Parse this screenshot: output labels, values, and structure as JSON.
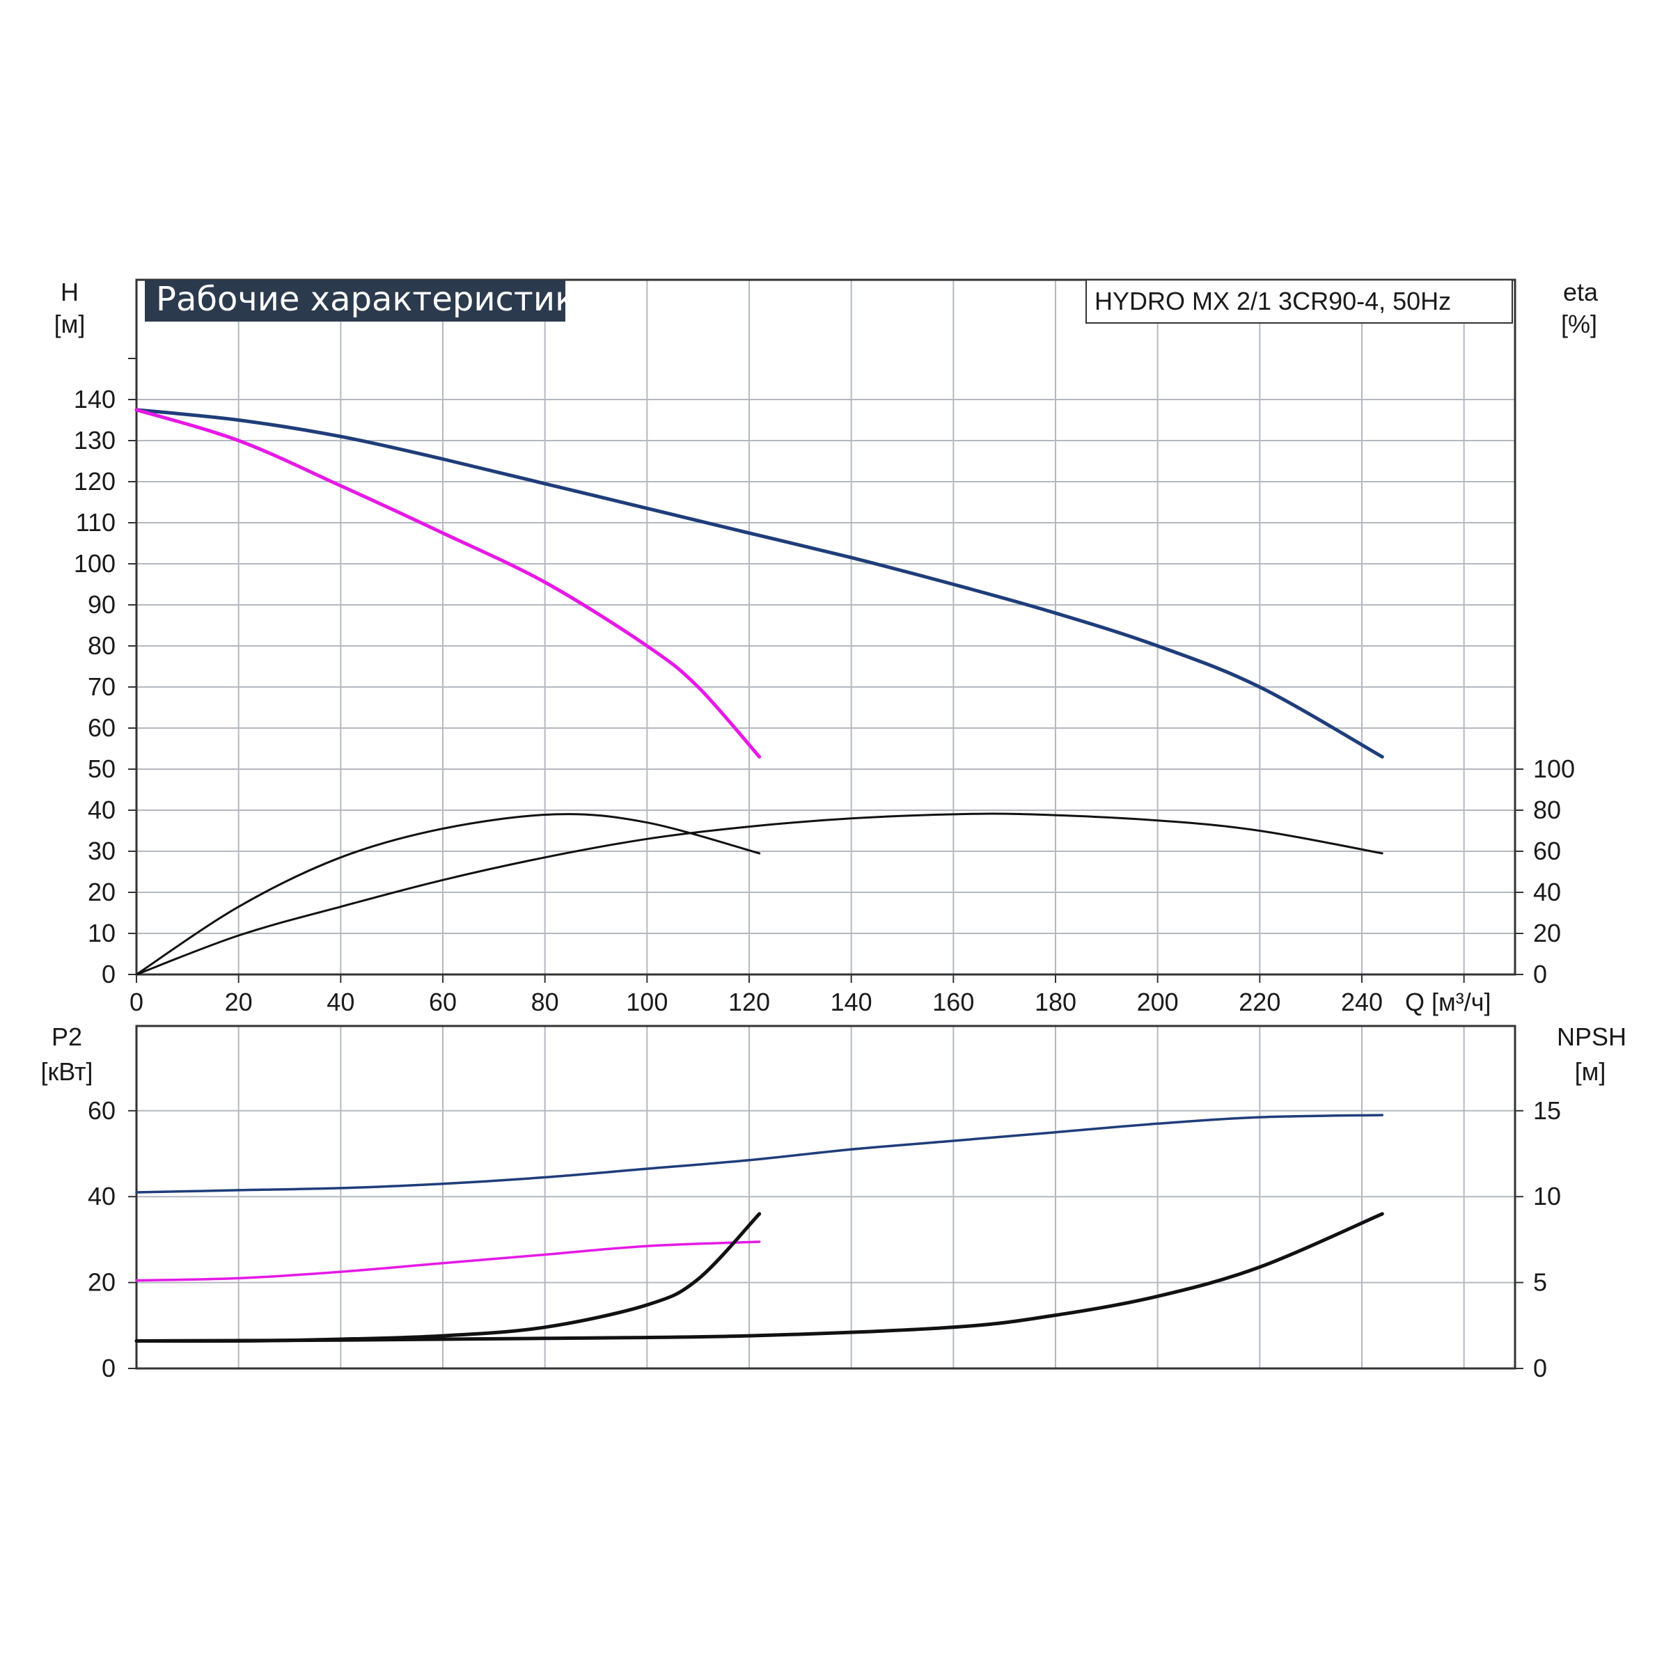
{
  "title": "Рабочие характеристики",
  "model": "HYDRO MX 2/1 3CR90-4, 50Hz",
  "colors": {
    "grid": "#b4b8c0",
    "axis": "#333333",
    "blue": "#1f3d7a",
    "magenta": "#e619e6",
    "black": "#111111",
    "banner_bg": "#2c3a4d"
  },
  "chart_data": [
    {
      "type": "line",
      "title": "Рабочие характеристики",
      "subtitle": "HYDRO MX 2/1 3CR90-4, 50Hz",
      "xlabel": "Q [м³/ч]",
      "ylabel": "H",
      "ylabel_unit": "[м]",
      "y2label": "eta",
      "y2label_unit": "[%]",
      "xlim": [
        0,
        270
      ],
      "ylim": [
        0,
        150
      ],
      "y2lim": [
        0,
        150
      ],
      "x_ticks": [
        "0",
        "20",
        "40",
        "60",
        "80",
        "100",
        "120",
        "140",
        "160",
        "180",
        "200",
        "220",
        "240"
      ],
      "y_ticks": [
        "0",
        "10",
        "20",
        "30",
        "40",
        "50",
        "60",
        "70",
        "80",
        "90",
        "100",
        "110",
        "120",
        "130",
        "140"
      ],
      "y2_ticks": [
        "0",
        "20",
        "40",
        "60",
        "80",
        "100"
      ],
      "grid": true,
      "series": [
        {
          "color": "#1f3d7a",
          "axis": "left",
          "x": [
            0,
            20,
            40,
            60,
            80,
            100,
            120,
            140,
            160,
            180,
            200,
            220,
            244
          ],
          "y": [
            137.5,
            135,
            131,
            125.5,
            119.5,
            113.5,
            107.5,
            101.5,
            95,
            88,
            80,
            70,
            53
          ]
        },
        {
          "color": "#e619e6",
          "axis": "left",
          "x": [
            0,
            20,
            40,
            60,
            80,
            100,
            110,
            122
          ],
          "y": [
            137.5,
            130,
            119,
            107.5,
            95.5,
            80,
            70,
            53
          ]
        },
        {
          "color": "#111111",
          "axis": "right",
          "x": [
            0,
            20,
            40,
            60,
            82,
            100,
            122
          ],
          "y": [
            0,
            33,
            57,
            71,
            78,
            74,
            59
          ]
        },
        {
          "color": "#111111",
          "axis": "right",
          "x": [
            0,
            20,
            40,
            60,
            80,
            100,
            120,
            140,
            160,
            175,
            200,
            220,
            244
          ],
          "y": [
            0,
            19,
            33,
            46,
            57,
            66,
            72,
            76,
            78,
            78,
            75,
            70,
            59
          ]
        }
      ]
    },
    {
      "type": "line",
      "xlabel": "",
      "ylabel": "P2",
      "ylabel_unit": "[кВт]",
      "y2label": "NPSH",
      "y2label_unit": "[м]",
      "xlim": [
        0,
        270
      ],
      "ylim": [
        0,
        80
      ],
      "y2lim": [
        0,
        20
      ],
      "y_ticks": [
        "0",
        "20",
        "40",
        "60"
      ],
      "y2_ticks": [
        "0",
        "5",
        "10",
        "15"
      ],
      "grid": true,
      "series": [
        {
          "color": "#1f3d7a",
          "axis": "left",
          "x": [
            0,
            20,
            40,
            60,
            80,
            100,
            120,
            140,
            160,
            180,
            200,
            220,
            244
          ],
          "y": [
            41,
            41.5,
            42,
            43,
            44.5,
            46.5,
            48.5,
            51,
            53,
            55,
            57,
            58.5,
            59
          ]
        },
        {
          "color": "#e619e6",
          "axis": "left",
          "x": [
            0,
            20,
            40,
            60,
            80,
            100,
            122
          ],
          "y": [
            20.5,
            21,
            22.5,
            24.5,
            26.5,
            28.5,
            29.5
          ]
        },
        {
          "color": "#111111",
          "axis": "right",
          "x": [
            0,
            20,
            40,
            60,
            80,
            100,
            110,
            122
          ],
          "y": [
            1.6,
            1.6,
            1.7,
            1.9,
            2.4,
            3.7,
            5.2,
            9
          ]
        },
        {
          "color": "#111111",
          "axis": "right",
          "x": [
            0,
            40,
            80,
            120,
            160,
            180,
            200,
            220,
            244
          ],
          "y": [
            1.6,
            1.65,
            1.75,
            1.9,
            2.4,
            3.1,
            4.2,
            5.9,
            9
          ]
        }
      ]
    }
  ]
}
